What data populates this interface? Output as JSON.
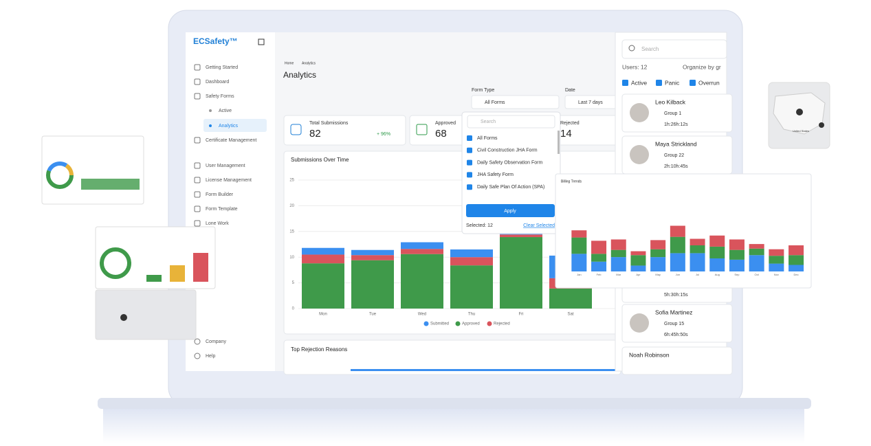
{
  "sidebar": {
    "brand": "ECSafety™",
    "items": [
      "Getting Started",
      "Dashboard",
      "Safety Forms",
      "Certificate Management",
      "User Management",
      "License Management",
      "Form Builder",
      "Form Template",
      "Lone Work"
    ],
    "sub": [
      "Active",
      "Analytics"
    ],
    "bottom": [
      "Company",
      "Help"
    ]
  },
  "header": {
    "breadcrumb": [
      "Home",
      "Analytics"
    ],
    "title": "Analytics",
    "form_type_label": "Form Type",
    "form_type_value": "All Forms",
    "date_label": "Date",
    "date_value": "Last 7 days"
  },
  "stats": [
    {
      "label": "Total Submissions",
      "value": 82,
      "change": "+ 96%"
    },
    {
      "label": "Approved",
      "value": 68
    },
    {
      "label": "Rejected",
      "value": 14
    }
  ],
  "dropdown": {
    "search": "Search",
    "options": [
      "All Forms",
      "Civil Construction JHA Form",
      "Daily Safety Observation Form",
      "JHA Safety Form",
      "Daily Safe Plan Of Action (SPA)"
    ],
    "apply": "Apply",
    "selected": "Selected: 12",
    "clear": "Clear Selected"
  },
  "section_title": "Top Rejection Reasons",
  "users_panel": {
    "search": "Search",
    "count": "Users: 12",
    "organize": "Organize by gr",
    "filters": [
      "Active",
      "Panic",
      "Overrun"
    ],
    "users": [
      {
        "name": "Leo Kilback",
        "group": "Group 1",
        "time": "1h:26h:12s"
      },
      {
        "name": "Maya Strickland",
        "group": "Group 22",
        "time": "2h:10h:45s"
      },
      {
        "time": "5h:30h:15s"
      },
      {
        "name": "Sofia Martinez",
        "group": "Group 15",
        "time": "6h:45h:50s"
      },
      {
        "name": "Noah Robinson"
      }
    ]
  },
  "map_label": "United States",
  "chart_data": [
    {
      "type": "bar",
      "stacked": true,
      "title": "Submissions Over Time",
      "categories": [
        "Mon",
        "Tue",
        "Wed",
        "Thu",
        "Fri",
        "Sat"
      ],
      "series": [
        {
          "name": "Submitted",
          "color": "#3b8ff0",
          "values": [
            1.3,
            1,
            1.3,
            1.5,
            0.5,
            4.4
          ]
        },
        {
          "name": "Approved",
          "color": "#3f9a4a",
          "values": [
            8.8,
            9.4,
            10.6,
            8.4,
            13.9,
            3.9
          ]
        },
        {
          "name": "Rejected",
          "color": "#d9545c",
          "values": [
            1.7,
            1,
            1,
            1.6,
            0.5,
            2
          ]
        }
      ],
      "ylim": [
        0,
        25
      ],
      "yticks": [
        0,
        5,
        10,
        15,
        20,
        25
      ],
      "grid": true
    },
    {
      "type": "bar",
      "stacked": true,
      "title": "Billing Trends",
      "categories": [
        "Jan",
        "Feb",
        "Mar",
        "Apr",
        "May",
        "Jun",
        "Jul",
        "Aug",
        "Sep",
        "Oct",
        "Nov",
        "Dec"
      ],
      "series": [
        {
          "color": "#3b8ff0",
          "values": [
            27,
            15,
            22,
            9,
            22,
            28,
            28,
            20,
            18,
            25,
            12,
            10
          ]
        },
        {
          "color": "#3f9a4a",
          "values": [
            25,
            12,
            11,
            16,
            12,
            25,
            12,
            18,
            15,
            10,
            12,
            15
          ]
        },
        {
          "color": "#d9545c",
          "values": [
            11,
            20,
            16,
            6,
            14,
            17,
            10,
            17,
            16,
            7,
            10,
            15
          ]
        }
      ],
      "ylim": [
        0,
        100
      ]
    }
  ]
}
